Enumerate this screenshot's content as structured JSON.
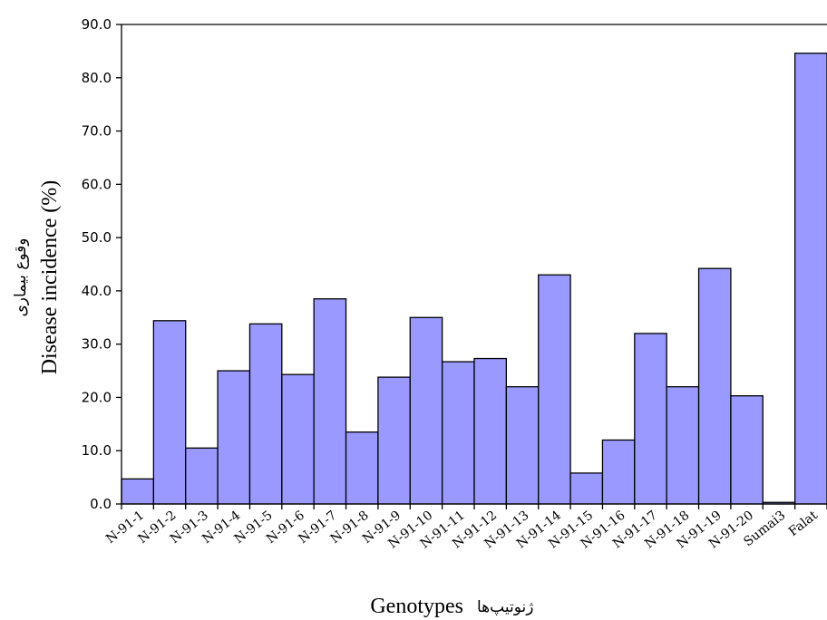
{
  "chart_data": {
    "type": "bar",
    "title": "",
    "xlabel": "Genotypes",
    "xlabel_fa": "ژنوتیپ‌ها",
    "ylabel": "Disease incidence (%)",
    "ylabel_fa": "وقوع بیماری",
    "ylim": [
      0,
      90
    ],
    "yticks": [
      "0.0",
      "10.0",
      "20.0",
      "30.0",
      "40.0",
      "50.0",
      "60.0",
      "70.0",
      "80.0",
      "90.0"
    ],
    "grid": false,
    "legend": "none",
    "bar_color": "#9999ff",
    "categories": [
      "N-91-1",
      "N-91-2",
      "N-91-3",
      "N-91-4",
      "N-91-5",
      "N-91-6",
      "N-91-7",
      "N-91-8",
      "N-91-9",
      "N-91-10",
      "N-91-11",
      "N-91-12",
      "N-91-13",
      "N-91-14",
      "N-91-15",
      "N-91-16",
      "N-91-17",
      "N-91-18",
      "N-91-19",
      "N-91-20",
      "Sumai3",
      "Falat"
    ],
    "values": [
      4.7,
      34.4,
      10.5,
      25.0,
      33.8,
      24.3,
      38.5,
      13.5,
      23.8,
      35.0,
      26.7,
      27.3,
      22.0,
      43.0,
      5.8,
      12.0,
      32.0,
      22.0,
      44.2,
      20.3,
      0.3,
      84.6
    ]
  }
}
